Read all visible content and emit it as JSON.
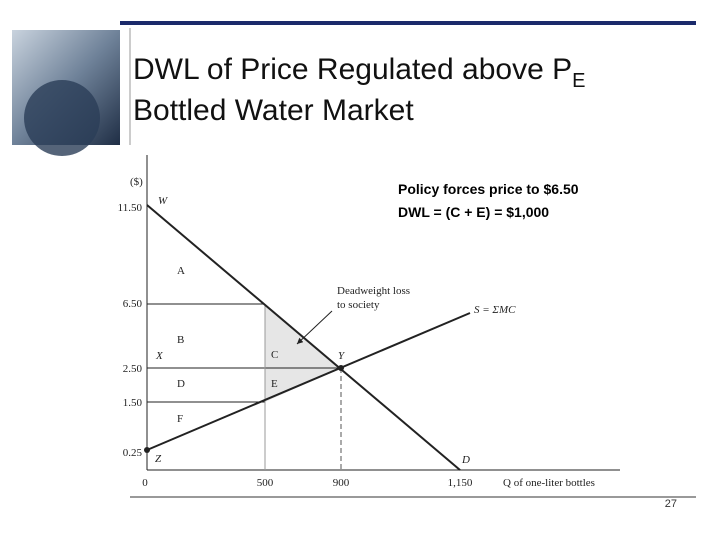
{
  "title": {
    "line1": "DWL of Price Regulated above P",
    "subscript": "E",
    "line2": "Bottled Water Market"
  },
  "diagram": {
    "y_axis_unit": "($)",
    "y_labels": [
      "11.50",
      "6.50",
      "2.50",
      "1.50",
      "0.25"
    ],
    "x_labels": [
      "0",
      "500",
      "900",
      "1,150"
    ],
    "x_axis_title": "Q of one-liter bottles",
    "supply_label": "S = ΣMC",
    "points": {
      "W": "W",
      "X": "X",
      "Y": "Y",
      "Z": "Z",
      "D": "D"
    },
    "regions": {
      "A": "A",
      "B": "B",
      "C": "C",
      "D": "D",
      "E": "E",
      "F": "F"
    },
    "annotation": [
      "Deadweight loss",
      "to society"
    ]
  },
  "note": [
    "Policy forces price to $6.50",
    "DWL = (C + E) = $1,000"
  ],
  "page_number": "27"
}
